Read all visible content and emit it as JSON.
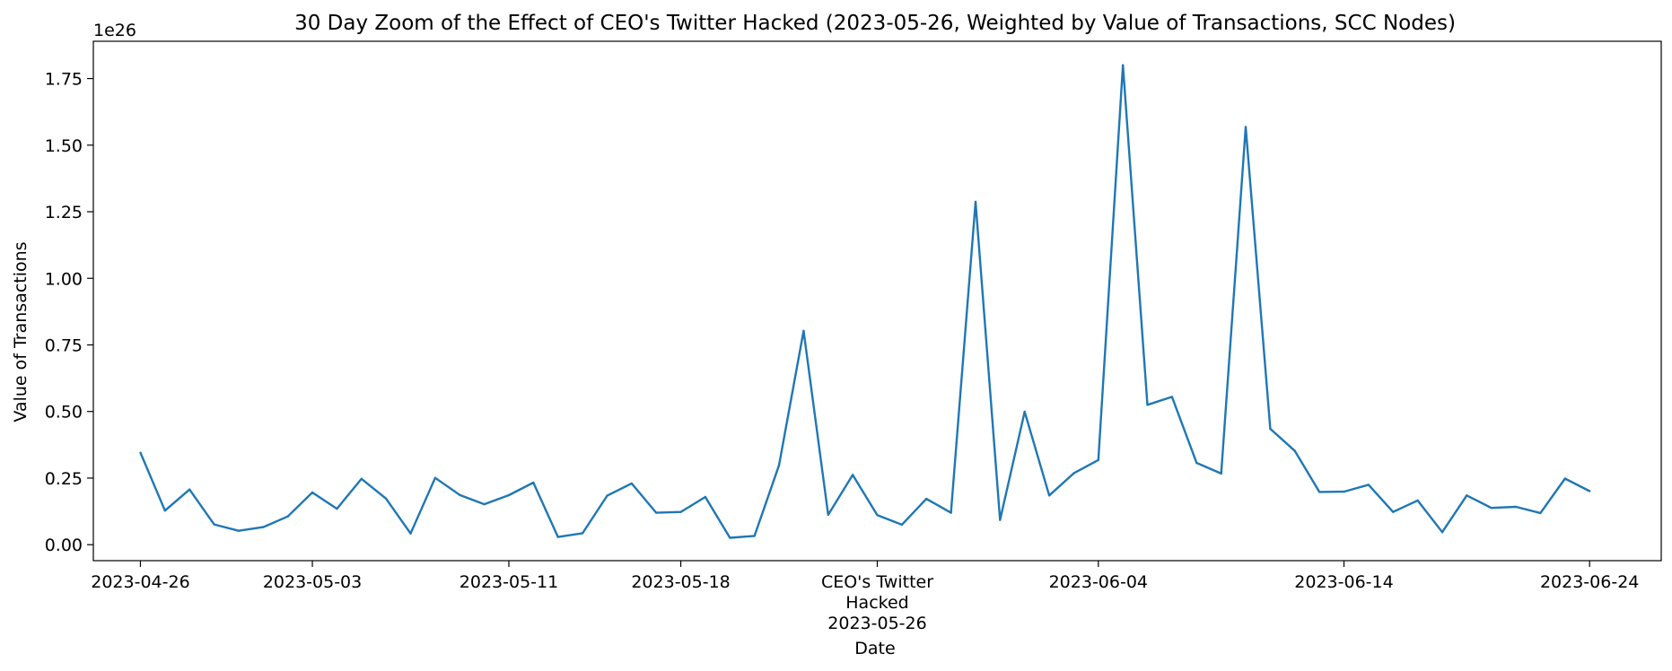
{
  "chart_data": {
    "type": "line",
    "title": "30 Day Zoom of the Effect of CEO's Twitter Hacked (2023-05-26, Weighted by Value of Transactions, SCC Nodes)",
    "xlabel": "Date",
    "ylabel": "Value of Transactions",
    "y_offset_label": "1e26",
    "y_multiplier": 1e+26,
    "ylim": [
      -0.06,
      1.89
    ],
    "xlim": [
      "2023-04-24T02:00",
      "2023-06-26T22:00"
    ],
    "grid": false,
    "legend": "none",
    "line_color": "#1f77b4",
    "x_ticks": [
      {
        "date": "2023-04-26",
        "label": "2023-04-26"
      },
      {
        "date": "2023-05-03",
        "label": "2023-05-03"
      },
      {
        "date": "2023-05-11",
        "label": "2023-05-11"
      },
      {
        "date": "2023-05-18",
        "label": "2023-05-18"
      },
      {
        "date": "2023-05-26",
        "label": "2023-05-26"
      },
      {
        "date": "2023-06-04",
        "label": "2023-06-04"
      },
      {
        "date": "2023-06-14",
        "label": "2023-06-14"
      },
      {
        "date": "2023-06-24",
        "label": "2023-06-24"
      }
    ],
    "y_ticks": [
      0.0,
      0.25,
      0.5,
      0.75,
      1.0,
      1.25,
      1.5,
      1.75
    ],
    "y_tick_labels": [
      "0.00",
      "0.25",
      "0.50",
      "0.75",
      "1.00",
      "1.25",
      "1.50",
      "1.75"
    ],
    "annotations": [
      {
        "date": "2023-05-26",
        "lines": [
          "CEO's Twitter",
          "Hacked",
          "2023-05-26"
        ]
      }
    ],
    "series": [
      {
        "x": [
          "2023-04-26",
          "2023-04-27",
          "2023-04-28",
          "2023-04-29",
          "2023-04-30",
          "2023-05-01",
          "2023-05-02",
          "2023-05-03",
          "2023-05-04",
          "2023-05-05",
          "2023-05-06",
          "2023-05-07",
          "2023-05-08",
          "2023-05-09",
          "2023-05-10",
          "2023-05-11",
          "2023-05-12",
          "2023-05-13",
          "2023-05-14",
          "2023-05-15",
          "2023-05-16",
          "2023-05-17",
          "2023-05-18",
          "2023-05-19",
          "2023-05-20",
          "2023-05-21",
          "2023-05-22",
          "2023-05-23",
          "2023-05-24",
          "2023-05-25",
          "2023-05-26",
          "2023-05-27",
          "2023-05-28",
          "2023-05-29",
          "2023-05-30",
          "2023-05-31",
          "2023-06-01",
          "2023-06-02",
          "2023-06-03",
          "2023-06-04",
          "2023-06-05",
          "2023-06-06",
          "2023-06-07",
          "2023-06-08",
          "2023-06-09",
          "2023-06-10",
          "2023-06-11",
          "2023-06-12",
          "2023-06-13",
          "2023-06-14",
          "2023-06-15",
          "2023-06-16",
          "2023-06-17",
          "2023-06-18",
          "2023-06-19",
          "2023-06-20",
          "2023-06-21",
          "2023-06-22",
          "2023-06-23",
          "2023-06-24"
        ],
        "values": [
          0.345,
          0.128,
          0.207,
          0.076,
          0.052,
          0.066,
          0.106,
          0.196,
          0.135,
          0.247,
          0.173,
          0.042,
          0.251,
          0.187,
          0.152,
          0.186,
          0.233,
          0.029,
          0.043,
          0.184,
          0.23,
          0.12,
          0.123,
          0.179,
          0.026,
          0.033,
          0.298,
          0.803,
          0.112,
          0.262,
          0.111,
          0.075,
          0.172,
          0.12,
          1.287,
          0.093,
          0.499,
          0.185,
          0.268,
          0.318,
          1.8,
          0.525,
          0.555,
          0.307,
          0.267,
          1.568,
          0.435,
          0.352,
          0.198,
          0.199,
          0.225,
          0.123,
          0.166,
          0.047,
          0.185,
          0.138,
          0.142,
          0.119,
          0.248,
          0.201
        ]
      }
    ]
  }
}
